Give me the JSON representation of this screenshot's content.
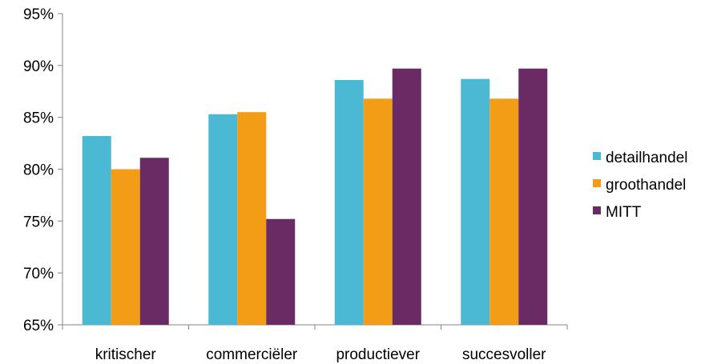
{
  "chart_data": {
    "type": "bar",
    "categories": [
      "kritischer",
      "commerciëler",
      "productiever",
      "succesvoller"
    ],
    "series": [
      {
        "name": "detailhandel",
        "color": "#4BB9D3",
        "values": [
          83.2,
          85.3,
          88.6,
          88.7
        ]
      },
      {
        "name": "groothandel",
        "color": "#F39C16",
        "values": [
          80.0,
          85.5,
          86.8,
          86.8
        ]
      },
      {
        "name": "MITT",
        "color": "#6A2A63",
        "values": [
          81.1,
          75.2,
          89.7,
          89.7
        ]
      }
    ],
    "ylim": [
      65,
      95
    ],
    "yticks": [
      65,
      70,
      75,
      80,
      85,
      90,
      95
    ],
    "ytick_labels": [
      "65%",
      "70%",
      "75%",
      "80%",
      "85%",
      "90%",
      "95%"
    ],
    "grid": false,
    "legend_position": "right"
  }
}
